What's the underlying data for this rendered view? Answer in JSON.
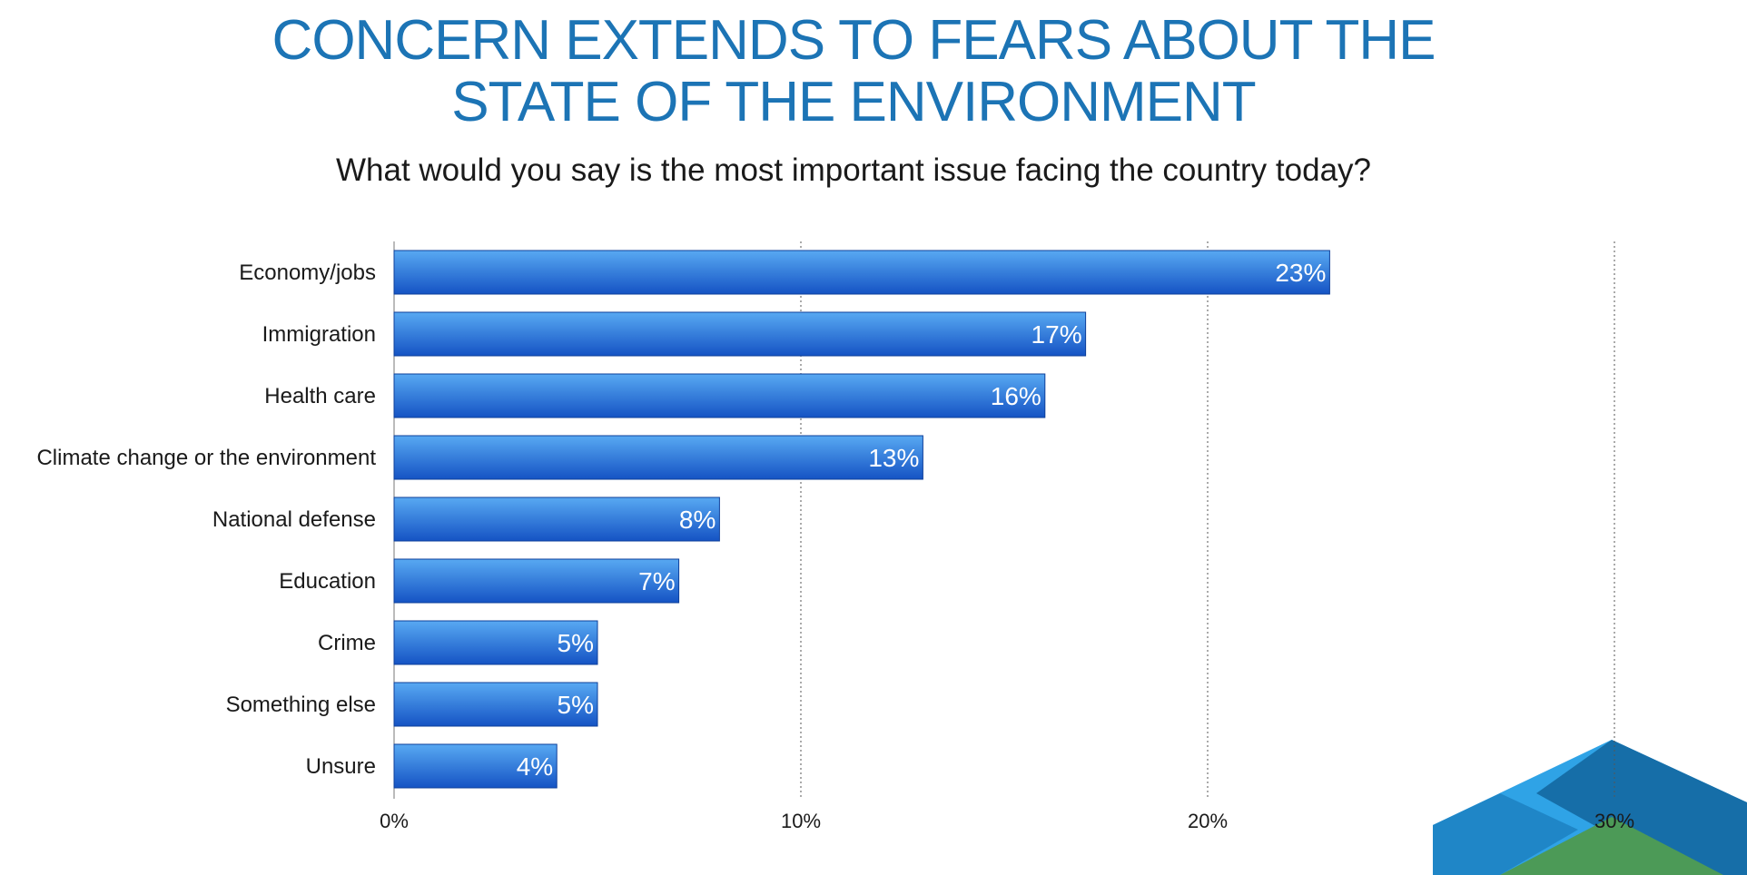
{
  "title_line_1": "CONCERN EXTENDS TO FEARS ABOUT THE",
  "title_line_2": "STATE OF THE ENVIRONMENT",
  "subtitle": "What would you say is the most important issue facing the country today?",
  "colors": {
    "title": "#1c74b5",
    "bar_top": "#58a9f2",
    "bar_bottom": "#1553c4",
    "bar_stroke": "#0e3f9a",
    "value_label": "#ffffff",
    "logo_light": "#2fa3e6",
    "logo_mid": "#1f86c7",
    "logo_dark": "#166ea8",
    "logo_green": "#4c9a57"
  },
  "chart_data": {
    "type": "bar",
    "orientation": "horizontal",
    "title": "CONCERN EXTENDS TO FEARS ABOUT THE STATE OF THE ENVIRONMENT",
    "subtitle": "What would you say is the most important issue facing the country today?",
    "categories": [
      "Economy/jobs",
      "Immigration",
      "Health care",
      "Climate change or the environment",
      "National defense",
      "Education",
      "Crime",
      "Something else",
      "Unsure"
    ],
    "values": [
      23,
      17,
      16,
      13,
      8,
      7,
      5,
      5,
      4
    ],
    "value_labels": [
      "23%",
      "17%",
      "16%",
      "13%",
      "8%",
      "7%",
      "5%",
      "5%",
      "4%"
    ],
    "xlim": [
      0,
      30
    ],
    "xticks": [
      0,
      10,
      20,
      30
    ],
    "xtick_labels": [
      "0%",
      "10%",
      "20%",
      "30%"
    ],
    "xlabel": "",
    "ylabel": "",
    "grid": "vertical dotted",
    "legend": "none"
  },
  "logo": {
    "icon": "isometric-cube-logo-icon"
  }
}
